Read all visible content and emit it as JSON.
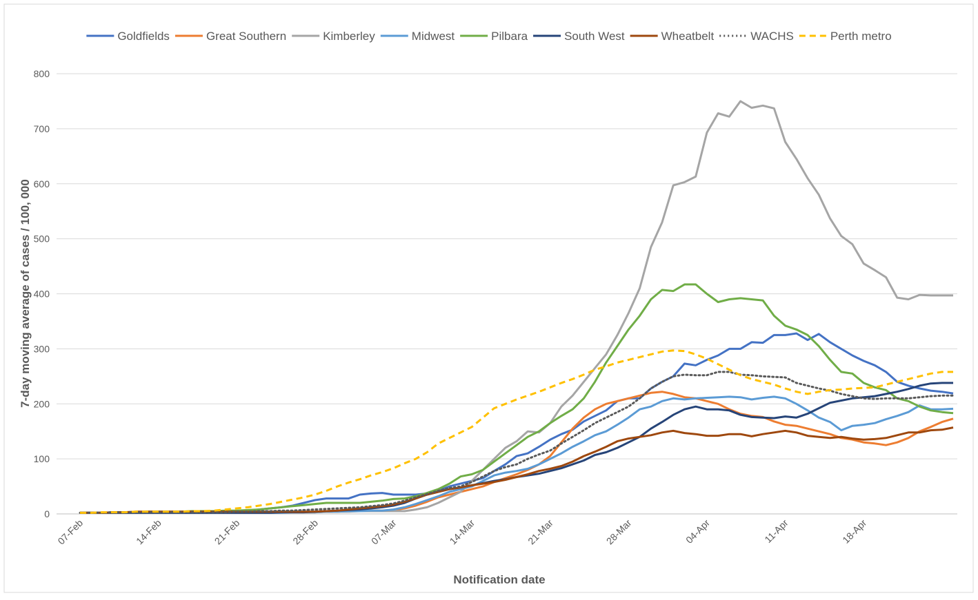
{
  "chart_data": {
    "type": "line",
    "y_label": "7-day moving average of cases / 100, 000",
    "x_label": "Notification date",
    "ylim": [
      0,
      800
    ],
    "yticks": [
      0,
      100,
      200,
      300,
      400,
      500,
      600,
      700,
      800
    ],
    "grid": true,
    "legend": "top",
    "categories": [
      "07-Feb",
      null,
      null,
      null,
      null,
      null,
      null,
      "14-Feb",
      null,
      null,
      null,
      null,
      null,
      null,
      "21-Feb",
      null,
      null,
      null,
      null,
      null,
      null,
      "28-Feb",
      null,
      null,
      null,
      null,
      null,
      null,
      "07-Mar",
      null,
      null,
      null,
      null,
      null,
      null,
      "14-Mar",
      null,
      null,
      null,
      null,
      null,
      null,
      "21-Mar",
      null,
      null,
      null,
      null,
      null,
      null,
      "28-Mar",
      null,
      null,
      null,
      null,
      null,
      null,
      "04-Apr",
      null,
      null,
      null,
      null,
      null,
      null,
      "11-Apr",
      null,
      null,
      null,
      null,
      null,
      null,
      "18-Apr",
      null,
      null,
      null,
      null,
      null,
      null,
      null,
      null
    ],
    "series": [
      {
        "name": "Goldfields",
        "color": "#4472c4",
        "style": "solid",
        "values": [
          2,
          2,
          2,
          3,
          3,
          3,
          3,
          3,
          3,
          3,
          4,
          4,
          4,
          5,
          5,
          6,
          8,
          10,
          12,
          15,
          20,
          25,
          28,
          28,
          28,
          35,
          37,
          38,
          35,
          35,
          35,
          37,
          42,
          50,
          55,
          60,
          65,
          78,
          90,
          105,
          110,
          122,
          135,
          145,
          153,
          168,
          178,
          188,
          205,
          210,
          210,
          228,
          240,
          250,
          273,
          270,
          280,
          288,
          300,
          300,
          312,
          311,
          325,
          325,
          328,
          316,
          327,
          312,
          300,
          288,
          278,
          270,
          258,
          240,
          233,
          228,
          224,
          222,
          219
        ]
      },
      {
        "name": "Great Southern",
        "color": "#ed7d31",
        "style": "solid",
        "values": [
          2,
          2,
          2,
          2,
          2,
          2,
          2,
          2,
          2,
          2,
          2,
          2,
          2,
          2,
          2,
          2,
          2,
          3,
          3,
          3,
          3,
          3,
          4,
          4,
          5,
          5,
          6,
          6,
          7,
          10,
          15,
          22,
          30,
          35,
          40,
          45,
          50,
          58,
          65,
          72,
          80,
          90,
          105,
          130,
          155,
          175,
          190,
          200,
          205,
          210,
          215,
          220,
          222,
          218,
          212,
          210,
          205,
          200,
          190,
          182,
          178,
          176,
          168,
          162,
          160,
          155,
          150,
          145,
          138,
          135,
          130,
          128,
          125,
          130,
          138,
          150,
          158,
          167,
          173
        ]
      },
      {
        "name": "Kimberley",
        "color": "#a5a5a5",
        "style": "solid",
        "values": [
          2,
          2,
          2,
          3,
          3,
          3,
          3,
          3,
          3,
          3,
          3,
          3,
          3,
          3,
          3,
          3,
          3,
          3,
          3,
          3,
          3,
          3,
          4,
          4,
          4,
          5,
          5,
          5,
          5,
          5,
          8,
          12,
          20,
          30,
          40,
          60,
          80,
          100,
          120,
          132,
          150,
          148,
          165,
          195,
          215,
          240,
          265,
          290,
          325,
          365,
          410,
          485,
          530,
          597,
          603,
          613,
          693,
          728,
          722,
          750,
          738,
          742,
          737,
          676,
          645,
          610,
          580,
          537,
          505,
          490,
          455,
          443,
          430,
          393,
          390,
          398,
          397,
          397,
          397
        ]
      },
      {
        "name": "Midwest",
        "color": "#5b9bd5",
        "style": "solid",
        "values": [
          2,
          2,
          2,
          2,
          2,
          2,
          2,
          2,
          2,
          2,
          2,
          2,
          2,
          2,
          2,
          2,
          2,
          2,
          2,
          3,
          3,
          3,
          4,
          4,
          5,
          5,
          6,
          6,
          8,
          12,
          18,
          25,
          32,
          40,
          45,
          50,
          60,
          70,
          75,
          78,
          82,
          90,
          100,
          110,
          122,
          132,
          143,
          150,
          162,
          175,
          190,
          195,
          205,
          210,
          208,
          210,
          211,
          212,
          213,
          212,
          208,
          211,
          213,
          210,
          200,
          188,
          175,
          167,
          152,
          160,
          162,
          165,
          172,
          178,
          185,
          197,
          190,
          190,
          191
        ]
      },
      {
        "name": "Pilbara",
        "color": "#70ad47",
        "style": "solid",
        "values": [
          2,
          2,
          2,
          3,
          3,
          3,
          4,
          4,
          4,
          4,
          5,
          5,
          5,
          6,
          6,
          7,
          8,
          10,
          12,
          14,
          16,
          18,
          20,
          20,
          20,
          20,
          22,
          24,
          27,
          28,
          32,
          38,
          45,
          55,
          68,
          72,
          80,
          95,
          110,
          125,
          140,
          150,
          165,
          178,
          190,
          210,
          240,
          275,
          305,
          335,
          360,
          390,
          407,
          405,
          417,
          417,
          400,
          385,
          390,
          392,
          390,
          388,
          360,
          342,
          335,
          325,
          305,
          280,
          258,
          255,
          238,
          230,
          225,
          210,
          205,
          195,
          188,
          185,
          183
        ]
      },
      {
        "name": "South West",
        "color": "#264478",
        "style": "solid",
        "values": [
          2,
          2,
          2,
          2,
          2,
          2,
          2,
          2,
          2,
          2,
          2,
          2,
          2,
          2,
          2,
          2,
          2,
          2,
          3,
          3,
          3,
          4,
          5,
          6,
          7,
          8,
          10,
          12,
          15,
          20,
          28,
          35,
          40,
          45,
          48,
          52,
          56,
          60,
          63,
          67,
          70,
          73,
          78,
          83,
          90,
          97,
          107,
          112,
          120,
          130,
          140,
          155,
          167,
          180,
          190,
          195,
          190,
          190,
          188,
          180,
          176,
          175,
          174,
          177,
          175,
          182,
          192,
          202,
          206,
          210,
          212,
          214,
          218,
          222,
          227,
          233,
          237,
          238,
          238
        ]
      },
      {
        "name": "Wheatbelt",
        "color": "#9e480e",
        "style": "solid",
        "values": [
          2,
          2,
          2,
          3,
          3,
          4,
          4,
          4,
          4,
          4,
          4,
          4,
          4,
          4,
          4,
          4,
          4,
          4,
          4,
          4,
          4,
          4,
          5,
          6,
          8,
          10,
          12,
          14,
          17,
          22,
          28,
          35,
          40,
          45,
          48,
          52,
          55,
          58,
          62,
          67,
          72,
          78,
          82,
          87,
          95,
          105,
          113,
          122,
          132,
          137,
          140,
          143,
          148,
          151,
          147,
          145,
          142,
          142,
          145,
          145,
          141,
          145,
          148,
          151,
          148,
          142,
          140,
          138,
          140,
          137,
          135,
          136,
          138,
          143,
          148,
          148,
          152,
          153,
          157
        ]
      },
      {
        "name": "WACHS",
        "color": "#595959",
        "style": "dotted",
        "values": [
          2,
          2,
          2,
          3,
          3,
          3,
          3,
          3,
          3,
          3,
          3,
          3,
          3,
          3,
          4,
          4,
          5,
          5,
          6,
          6,
          7,
          8,
          9,
          10,
          11,
          12,
          14,
          16,
          19,
          24,
          30,
          36,
          42,
          47,
          50,
          58,
          68,
          78,
          85,
          90,
          100,
          108,
          115,
          128,
          140,
          152,
          165,
          175,
          185,
          195,
          210,
          228,
          240,
          250,
          253,
          252,
          252,
          258,
          258,
          253,
          252,
          250,
          249,
          248,
          238,
          233,
          228,
          224,
          218,
          214,
          210,
          209,
          210,
          210,
          210,
          212,
          214,
          215,
          215
        ]
      },
      {
        "name": "Perth metro",
        "color": "#ffc000",
        "style": "dashed",
        "values": [
          2,
          2,
          3,
          3,
          3,
          4,
          4,
          4,
          4,
          4,
          5,
          5,
          6,
          8,
          10,
          12,
          15,
          18,
          22,
          26,
          30,
          35,
          42,
          50,
          57,
          63,
          70,
          76,
          83,
          92,
          100,
          112,
          128,
          138,
          148,
          158,
          175,
          192,
          200,
          208,
          215,
          222,
          230,
          238,
          245,
          253,
          262,
          268,
          275,
          280,
          285,
          290,
          295,
          297,
          296,
          290,
          282,
          272,
          262,
          252,
          245,
          240,
          235,
          228,
          222,
          218,
          222,
          225,
          226,
          228,
          229,
          230,
          235,
          240,
          245,
          250,
          255,
          258,
          258
        ]
      }
    ]
  }
}
